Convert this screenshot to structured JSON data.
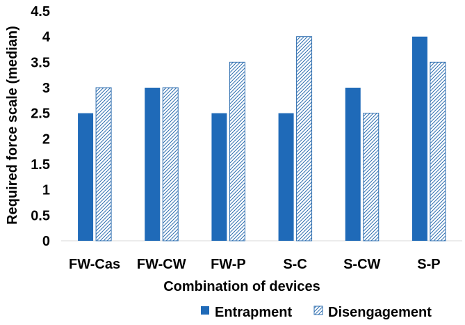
{
  "chart_data": {
    "type": "bar",
    "title": "",
    "xlabel": "Combination of devices",
    "ylabel": "Required force scale (median)",
    "categories": [
      "FW-Cas",
      "FW-CW",
      "FW-P",
      "S-C",
      "S-CW",
      "S-P"
    ],
    "series": [
      {
        "name": "Entrapment",
        "values": [
          2.5,
          3,
          2.5,
          2.5,
          3,
          4
        ],
        "fill": "solid",
        "color": "#1f6ab8"
      },
      {
        "name": "Disengagement",
        "values": [
          3,
          3,
          3.5,
          4,
          2.5,
          3.5
        ],
        "fill": "hatched",
        "color": "#2f6fb0"
      }
    ],
    "ylim": [
      0,
      4.5
    ],
    "yticks": [
      "0",
      "0.5",
      "1",
      "1.5",
      "2",
      "2.5",
      "3",
      "3.5",
      "4",
      "4.5"
    ],
    "grid": false,
    "legend_position": "bottom-right"
  }
}
